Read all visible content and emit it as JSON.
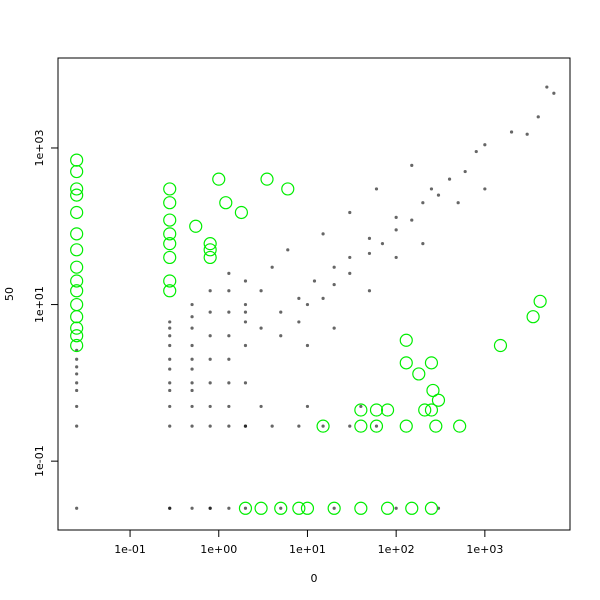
{
  "chart_data": {
    "type": "scatter",
    "x_label": "0",
    "y_label": "50",
    "xscale": "log",
    "yscale": "log",
    "xlim": [
      0.0154,
      9120
    ],
    "ylim": [
      0.0132,
      14100
    ],
    "xticks": [
      {
        "value": 0.1,
        "label": "1e-01"
      },
      {
        "value": 1,
        "label": "1e+00"
      },
      {
        "value": 10,
        "label": "1e+01"
      },
      {
        "value": 100,
        "label": "1e+02"
      },
      {
        "value": 1000,
        "label": "1e+03"
      }
    ],
    "yticks": [
      {
        "value": 0.1,
        "label": "1e-01"
      },
      {
        "value": 10,
        "label": "1e+01"
      },
      {
        "value": 1000,
        "label": "1e+03"
      }
    ],
    "series": [
      {
        "color": "#000000",
        "marker": "dot",
        "x": [
          0.025,
          0.025,
          0.025,
          0.025,
          0.025,
          0.025,
          0.025,
          0.025,
          0.025,
          0.28,
          0.28,
          0.28,
          0.28,
          0.28,
          0.28,
          0.28,
          0.28,
          0.28,
          0.28,
          0.28,
          0.5,
          0.5,
          0.5,
          0.5,
          0.5,
          0.5,
          0.5,
          0.5,
          0.5,
          0.5,
          0.5,
          0.8,
          0.8,
          0.8,
          0.8,
          0.8,
          0.8,
          0.8,
          0.8,
          1.3,
          1.3,
          1.3,
          1.3,
          1.3,
          1.3,
          1.3,
          1.3,
          1.3,
          2,
          2,
          2,
          2,
          2,
          2,
          3,
          5,
          5,
          8,
          8,
          10,
          12,
          15,
          20,
          20,
          30,
          30,
          50,
          50,
          70,
          100,
          100,
          150,
          200,
          250,
          300,
          400,
          600,
          800,
          1000,
          2000,
          4000,
          6000,
          5000,
          3,
          2,
          10,
          20,
          50,
          100,
          200,
          4,
          6,
          15,
          30,
          60,
          150,
          500,
          1000,
          3000,
          2,
          4,
          8,
          15,
          30,
          60,
          3,
          10,
          40,
          0.28,
          0.8,
          2,
          5,
          20,
          100,
          300
        ],
        "y": [
          0.025,
          0.28,
          0.5,
          0.8,
          1,
          1.3,
          1.6,
          2,
          2.6,
          0.025,
          0.28,
          0.5,
          0.8,
          1,
          1.5,
          2,
          3,
          4,
          5,
          6,
          0.025,
          0.28,
          0.5,
          0.8,
          1,
          1.5,
          2,
          3,
          5,
          7,
          10,
          0.025,
          0.28,
          0.5,
          1,
          2,
          4,
          8,
          15,
          0.025,
          0.28,
          0.5,
          1,
          2,
          4,
          8,
          15,
          25,
          0.28,
          1,
          3,
          6,
          10,
          20,
          5,
          4,
          8,
          6,
          12,
          10,
          20,
          12,
          18,
          30,
          25,
          40,
          45,
          70,
          60,
          90,
          130,
          120,
          200,
          300,
          250,
          400,
          500,
          900,
          1100,
          1600,
          2500,
          5000,
          6000,
          15,
          8,
          3,
          5,
          15,
          40,
          60,
          30,
          50,
          80,
          150,
          300,
          600,
          200,
          300,
          1500,
          0.28,
          0.28,
          0.28,
          0.28,
          0.28,
          0.28,
          0.5,
          0.5,
          0.5,
          0.025,
          0.025,
          0.025,
          0.025,
          0.025,
          0.025,
          0.025
        ]
      },
      {
        "color": "#00ee00",
        "marker": "circle",
        "x": [
          0.025,
          0.025,
          0.025,
          0.025,
          0.025,
          0.025,
          0.025,
          0.025,
          0.025,
          0.025,
          0.025,
          0.025,
          0.025,
          0.025,
          0.025,
          0.28,
          0.28,
          0.28,
          0.28,
          0.28,
          0.28,
          0.28,
          0.28,
          0.55,
          0.8,
          0.8,
          0.8,
          1,
          1.2,
          1.8,
          3.5,
          6,
          2,
          3,
          5,
          8,
          10,
          20,
          40,
          80,
          150,
          250,
          1500,
          3500,
          4200,
          130,
          130,
          180,
          250,
          260,
          300,
          60,
          40,
          80,
          210,
          250,
          15,
          40,
          60,
          130,
          280,
          520
        ],
        "y": [
          3,
          4,
          5,
          7,
          10,
          15,
          20,
          30,
          50,
          80,
          150,
          250,
          300,
          500,
          700,
          15,
          20,
          40,
          60,
          80,
          120,
          200,
          300,
          100,
          40,
          60,
          50,
          400,
          200,
          150,
          400,
          300,
          0.025,
          0.025,
          0.025,
          0.025,
          0.025,
          0.025,
          0.025,
          0.025,
          0.025,
          0.025,
          3,
          7,
          11,
          3.5,
          1.8,
          1.3,
          1.8,
          0.8,
          0.6,
          0.45,
          0.45,
          0.45,
          0.45,
          0.45,
          0.28,
          0.28,
          0.28,
          0.28,
          0.28,
          0.28
        ]
      }
    ]
  }
}
